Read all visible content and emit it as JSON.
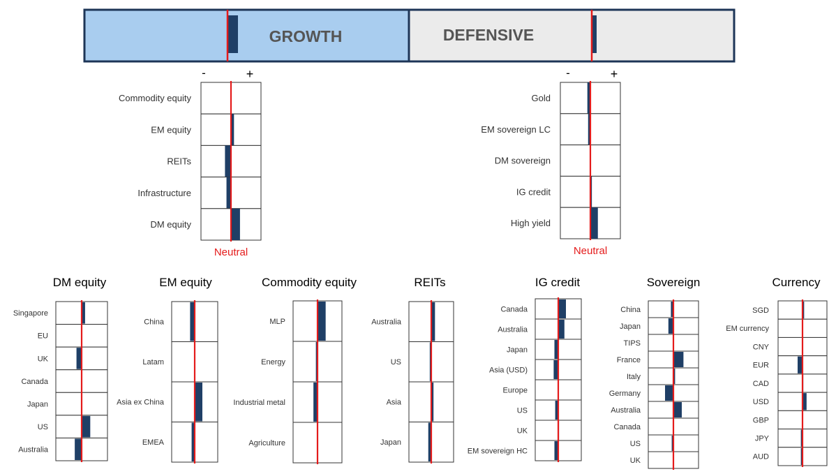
{
  "colors": {
    "growth_fill": "#a9cdef",
    "defensive_fill": "#ebebeb",
    "frame": "#1d3557",
    "bar": "#1f3f66",
    "neutral_line": "#e41b1b",
    "title_text": "#555555",
    "label_text": "#333333",
    "box_border": "#333333"
  },
  "header": {
    "growth_label": "GROWTH",
    "defensive_label": "DEFENSIVE"
  },
  "chart_data": [
    {
      "id": "growth_defensive_bar",
      "type": "bar",
      "categories": [
        "GROWTH",
        "DEFENSIVE"
      ],
      "values": [
        -0.7,
        0.3
      ],
      "xlim": [
        -4,
        4
      ]
    },
    {
      "id": "growth_assets",
      "type": "bar",
      "orientation": "horizontal",
      "minus_label": "-",
      "plus_label": "+",
      "neutral_label": "Neutral",
      "categories": [
        "Commodity equity",
        "EM equity",
        "REITs",
        "Infrastructure",
        "DM equity"
      ],
      "values": [
        0,
        0.4,
        -0.8,
        -0.6,
        1.2
      ],
      "xlim": [
        -4,
        4
      ]
    },
    {
      "id": "defensive_assets",
      "type": "bar",
      "orientation": "horizontal",
      "minus_label": "-",
      "plus_label": "+",
      "neutral_label": "Neutral",
      "categories": [
        "Gold",
        "EM sovereign LC",
        "DM sovereign",
        "IG credit",
        "High yield"
      ],
      "values": [
        -0.4,
        -0.3,
        0,
        0.2,
        1.0
      ],
      "xlim": [
        -4,
        4
      ]
    },
    {
      "id": "dm_equity",
      "type": "bar",
      "orientation": "horizontal",
      "title": "DM equity",
      "categories": [
        "Singapore",
        "EU",
        "UK",
        "Canada",
        "Japan",
        "US",
        "Australia"
      ],
      "values": [
        0.4,
        0,
        -0.6,
        0,
        0,
        1.0,
        -0.8
      ],
      "xlim": [
        -3,
        3
      ]
    },
    {
      "id": "em_equity",
      "type": "bar",
      "orientation": "horizontal",
      "title": "EM equity",
      "categories": [
        "China",
        "Latam",
        "Asia ex China",
        "EMEA"
      ],
      "values": [
        -0.6,
        0,
        1.0,
        -0.4
      ],
      "xlim": [
        -3,
        3
      ]
    },
    {
      "id": "commodity_equity",
      "type": "bar",
      "orientation": "horizontal",
      "title": "Commodity equity",
      "categories": [
        "MLP",
        "Energy",
        "Industrial metal",
        "Agriculture"
      ],
      "values": [
        1.0,
        -0.2,
        -0.5,
        0
      ],
      "xlim": [
        -3,
        3
      ]
    },
    {
      "id": "reits",
      "type": "bar",
      "orientation": "horizontal",
      "title": "REITs",
      "categories": [
        "Australia",
        "US",
        "Asia",
        "Japan"
      ],
      "values": [
        0.5,
        -0.2,
        0.3,
        -0.4
      ],
      "xlim": [
        -3,
        3
      ]
    },
    {
      "id": "ig_credit",
      "type": "bar",
      "orientation": "horizontal",
      "title": "IG credit",
      "categories": [
        "Canada",
        "Australia",
        "Japan",
        "Asia (USD)",
        "Europe",
        "US",
        "UK",
        "EM sovereign HC"
      ],
      "values": [
        1.0,
        0.8,
        -0.5,
        -0.6,
        0,
        -0.4,
        0.1,
        -0.5
      ],
      "xlim": [
        -3,
        3
      ]
    },
    {
      "id": "sovereign",
      "type": "bar",
      "orientation": "horizontal",
      "title": "Sovereign",
      "categories": [
        "China",
        "Japan",
        "TIPS",
        "France",
        "Italy",
        "Germany",
        "Australia",
        "Canada",
        "US",
        "UK"
      ],
      "values": [
        -0.3,
        -0.6,
        0,
        1.2,
        0.2,
        -1.0,
        1.0,
        0,
        -0.2,
        0
      ],
      "xlim": [
        -3,
        3
      ]
    },
    {
      "id": "currency",
      "type": "bar",
      "orientation": "horizontal",
      "title": "Currency",
      "categories": [
        "SGD",
        "EM currency",
        "CNY",
        "EUR",
        "CAD",
        "USD",
        "GBP",
        "JPY",
        "AUD"
      ],
      "values": [
        0.2,
        0,
        0,
        -0.6,
        0.1,
        0.5,
        0,
        -0.2,
        -0.2
      ],
      "xlim": [
        -3,
        3
      ]
    }
  ]
}
